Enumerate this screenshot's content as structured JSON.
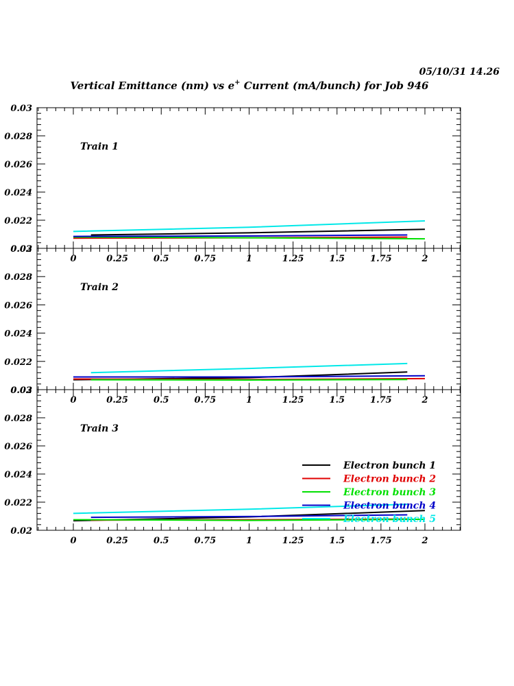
{
  "timestamp": "05/10/31   14.26",
  "title": {
    "prefix": "Vertical Emittance (nm) vs e",
    "superscript": "+",
    "suffix": " Current (mA/bunch) for Job 946"
  },
  "legend": {
    "entries": [
      {
        "label": "Electron bunch 1",
        "color": "#000000"
      },
      {
        "label": "Electron bunch 2",
        "color": "#e00000"
      },
      {
        "label": "Electron bunch 3",
        "color": "#00e000"
      },
      {
        "label": "Electron bunch 4",
        "color": "#0000c8"
      },
      {
        "label": "Electron bunch 5",
        "color": "#00e8e8"
      }
    ]
  },
  "chart_data": [
    {
      "type": "line",
      "panel_label": "Train 1",
      "xlim": [
        -0.2,
        2.2
      ],
      "ylim": [
        0.02,
        0.03
      ],
      "x_ticks": [
        "0",
        "0.25",
        "0.5",
        "0.75",
        "1",
        "1.25",
        "1.5",
        "1.75",
        "2"
      ],
      "y_ticks": [
        "0.02",
        "0.022",
        "0.024",
        "0.026",
        "0.028",
        "0.03"
      ],
      "series": [
        {
          "name": "Electron bunch 1",
          "color": "#000000",
          "x": [
            0.1,
            1.0,
            2.0
          ],
          "y": [
            0.02095,
            0.0211,
            0.02135
          ]
        },
        {
          "name": "Electron bunch 2",
          "color": "#e00000",
          "x": [
            0.0,
            1.0,
            1.9
          ],
          "y": [
            0.02072,
            0.02075,
            0.0208
          ]
        },
        {
          "name": "Electron bunch 3",
          "color": "#00e000",
          "x": [
            0.0,
            1.0,
            2.0
          ],
          "y": [
            0.0208,
            0.02075,
            0.02068
          ]
        },
        {
          "name": "Electron bunch 4",
          "color": "#0000c8",
          "x": [
            0.0,
            1.0,
            1.9
          ],
          "y": [
            0.02085,
            0.02088,
            0.02095
          ]
        },
        {
          "name": "Electron bunch 5",
          "color": "#00e8e8",
          "x": [
            0.0,
            1.0,
            2.0
          ],
          "y": [
            0.0212,
            0.0215,
            0.02195
          ]
        }
      ]
    },
    {
      "type": "line",
      "panel_label": "Train 2",
      "xlim": [
        -0.2,
        2.2
      ],
      "ylim": [
        0.02,
        0.03
      ],
      "x_ticks": [
        "0",
        "0.25",
        "0.5",
        "0.75",
        "1",
        "1.25",
        "1.5",
        "1.75",
        "2"
      ],
      "y_ticks": [
        "0.02",
        "0.022",
        "0.024",
        "0.026",
        "0.028",
        "0.03"
      ],
      "series": [
        {
          "name": "Electron bunch 1",
          "color": "#000000",
          "x": [
            0.0,
            1.0,
            1.9
          ],
          "y": [
            0.0207,
            0.02085,
            0.02125
          ]
        },
        {
          "name": "Electron bunch 2",
          "color": "#e00000",
          "x": [
            0.0,
            1.0,
            2.0
          ],
          "y": [
            0.02075,
            0.02072,
            0.02078
          ]
        },
        {
          "name": "Electron bunch 3",
          "color": "#00e000",
          "x": [
            0.1,
            1.0,
            1.9
          ],
          "y": [
            0.0207,
            0.02068,
            0.02072
          ]
        },
        {
          "name": "Electron bunch 4",
          "color": "#0000c8",
          "x": [
            0.0,
            1.0,
            2.0
          ],
          "y": [
            0.0209,
            0.0209,
            0.02098
          ]
        },
        {
          "name": "Electron bunch 5",
          "color": "#00e8e8",
          "x": [
            0.1,
            1.0,
            1.9
          ],
          "y": [
            0.0212,
            0.0215,
            0.02185
          ]
        }
      ]
    },
    {
      "type": "line",
      "panel_label": "Train 3",
      "xlim": [
        -0.2,
        2.2
      ],
      "ylim": [
        0.02,
        0.03
      ],
      "x_ticks": [
        "0",
        "0.25",
        "0.5",
        "0.75",
        "1",
        "1.25",
        "1.5",
        "1.75",
        "2"
      ],
      "y_ticks": [
        "0.02",
        "0.022",
        "0.024",
        "0.026",
        "0.028",
        "0.03"
      ],
      "series": [
        {
          "name": "Electron bunch 1",
          "color": "#000000",
          "x": [
            0.0,
            1.0,
            2.0
          ],
          "y": [
            0.02068,
            0.02095,
            0.0214
          ]
        },
        {
          "name": "Electron bunch 2",
          "color": "#e00000",
          "x": [
            0.1,
            1.0,
            1.9
          ],
          "y": [
            0.02072,
            0.02075,
            0.0208
          ]
        },
        {
          "name": "Electron bunch 3",
          "color": "#00e000",
          "x": [
            0.0,
            1.0,
            2.0
          ],
          "y": [
            0.02075,
            0.0207,
            0.02078
          ]
        },
        {
          "name": "Electron bunch 4",
          "color": "#0000c8",
          "x": [
            0.1,
            1.0,
            1.9
          ],
          "y": [
            0.02092,
            0.02098,
            0.0211
          ]
        },
        {
          "name": "Electron bunch 5",
          "color": "#00e8e8",
          "x": [
            0.0,
            1.0,
            1.9
          ],
          "y": [
            0.0212,
            0.0215,
            0.02185
          ]
        }
      ]
    }
  ]
}
